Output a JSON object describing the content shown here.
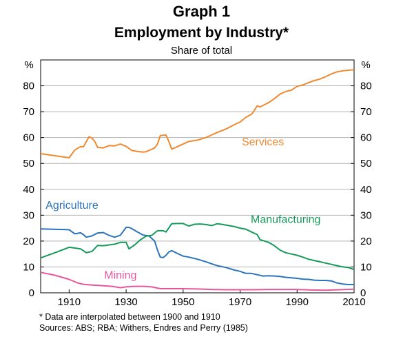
{
  "header": {
    "graph_number": "Graph 1",
    "title": "Employment by Industry*",
    "subtitle": "Share of total"
  },
  "footer": {
    "footnote": "*   Data are interpolated between 1900 and 1910",
    "sources": "Sources: ABS; RBA; Withers, Endres and Perry (1985)"
  },
  "chart_data": {
    "type": "line",
    "title": "Employment by Industry*",
    "subtitle": "Share of total",
    "ylabel_left": "%",
    "ylabel_right": "%",
    "xlim": [
      1900,
      2010
    ],
    "ylim": [
      0,
      90
    ],
    "x_ticks": [
      1910,
      1930,
      1950,
      1970,
      1990,
      2010
    ],
    "y_ticks": [
      0,
      10,
      20,
      30,
      40,
      50,
      60,
      70,
      80
    ],
    "grid": "horizontal",
    "series": [
      {
        "name": "Services",
        "color": "#f0892f",
        "points": [
          [
            1900,
            53.8
          ],
          [
            1910,
            52.2
          ],
          [
            1912,
            55.2
          ],
          [
            1914,
            56.5
          ],
          [
            1915,
            56.4
          ],
          [
            1917,
            60.3
          ],
          [
            1918,
            59.8
          ],
          [
            1919,
            58.5
          ],
          [
            1920,
            56.2
          ],
          [
            1922,
            56.0
          ],
          [
            1924,
            56.9
          ],
          [
            1926,
            56.8
          ],
          [
            1928,
            57.5
          ],
          [
            1930,
            56.6
          ],
          [
            1932,
            55.0
          ],
          [
            1934,
            54.6
          ],
          [
            1936,
            54.4
          ],
          [
            1937,
            54.5
          ],
          [
            1938,
            55.0
          ],
          [
            1940,
            56.0
          ],
          [
            1941,
            57.5
          ],
          [
            1942,
            60.8
          ],
          [
            1944,
            61.0
          ],
          [
            1945,
            58.5
          ],
          [
            1946,
            55.5
          ],
          [
            1948,
            56.5
          ],
          [
            1950,
            57.5
          ],
          [
            1952,
            58.5
          ],
          [
            1955,
            59.0
          ],
          [
            1958,
            60.0
          ],
          [
            1960,
            61.0
          ],
          [
            1962,
            62.0
          ],
          [
            1965,
            63.3
          ],
          [
            1968,
            65.0
          ],
          [
            1970,
            66.0
          ],
          [
            1972,
            67.8
          ],
          [
            1974,
            69.0
          ],
          [
            1975,
            70.5
          ],
          [
            1976,
            72.3
          ],
          [
            1977,
            71.8
          ],
          [
            1978,
            72.4
          ],
          [
            1980,
            73.5
          ],
          [
            1982,
            75.0
          ],
          [
            1984,
            76.8
          ],
          [
            1986,
            77.8
          ],
          [
            1988,
            78.3
          ],
          [
            1990,
            79.8
          ],
          [
            1992,
            80.3
          ],
          [
            1994,
            81.2
          ],
          [
            1996,
            82.0
          ],
          [
            1998,
            82.6
          ],
          [
            2000,
            83.5
          ],
          [
            2002,
            84.6
          ],
          [
            2004,
            85.4
          ],
          [
            2006,
            85.8
          ],
          [
            2008,
            86.0
          ],
          [
            2010,
            86.2
          ]
        ]
      },
      {
        "name": "Agriculture",
        "color": "#2a74bb",
        "points": [
          [
            1900,
            24.7
          ],
          [
            1910,
            24.4
          ],
          [
            1912,
            22.8
          ],
          [
            1914,
            23.2
          ],
          [
            1915,
            22.5
          ],
          [
            1916,
            21.5
          ],
          [
            1918,
            22.0
          ],
          [
            1920,
            23.1
          ],
          [
            1922,
            23.3
          ],
          [
            1924,
            22.2
          ],
          [
            1926,
            21.5
          ],
          [
            1928,
            22.3
          ],
          [
            1930,
            25.3
          ],
          [
            1931,
            25.3
          ],
          [
            1932,
            24.8
          ],
          [
            1934,
            23.5
          ],
          [
            1936,
            22.3
          ],
          [
            1938,
            22.0
          ],
          [
            1940,
            20.0
          ],
          [
            1941,
            16.5
          ],
          [
            1942,
            13.8
          ],
          [
            1943,
            13.6
          ],
          [
            1944,
            14.5
          ],
          [
            1945,
            15.8
          ],
          [
            1946,
            16.3
          ],
          [
            1948,
            15.2
          ],
          [
            1950,
            14.2
          ],
          [
            1952,
            13.8
          ],
          [
            1955,
            13.0
          ],
          [
            1958,
            12.0
          ],
          [
            1960,
            11.2
          ],
          [
            1962,
            10.5
          ],
          [
            1965,
            9.8
          ],
          [
            1968,
            8.8
          ],
          [
            1970,
            8.3
          ],
          [
            1972,
            7.5
          ],
          [
            1974,
            7.5
          ],
          [
            1976,
            7.0
          ],
          [
            1978,
            6.5
          ],
          [
            1980,
            6.6
          ],
          [
            1982,
            6.5
          ],
          [
            1984,
            6.3
          ],
          [
            1986,
            6.0
          ],
          [
            1988,
            5.8
          ],
          [
            1990,
            5.6
          ],
          [
            1992,
            5.3
          ],
          [
            1994,
            5.2
          ],
          [
            1996,
            4.9
          ],
          [
            1998,
            4.8
          ],
          [
            2000,
            4.8
          ],
          [
            2002,
            4.6
          ],
          [
            2004,
            3.8
          ],
          [
            2006,
            3.4
          ],
          [
            2008,
            3.2
          ],
          [
            2010,
            3.2
          ]
        ]
      },
      {
        "name": "Manufacturing",
        "color": "#159a5a",
        "points": [
          [
            1900,
            13.5
          ],
          [
            1905,
            15.5
          ],
          [
            1910,
            17.6
          ],
          [
            1912,
            17.3
          ],
          [
            1914,
            17.0
          ],
          [
            1915,
            16.3
          ],
          [
            1916,
            15.5
          ],
          [
            1918,
            16.0
          ],
          [
            1920,
            18.3
          ],
          [
            1922,
            18.2
          ],
          [
            1924,
            18.5
          ],
          [
            1926,
            18.8
          ],
          [
            1928,
            19.5
          ],
          [
            1930,
            19.5
          ],
          [
            1931,
            17.0
          ],
          [
            1933,
            18.5
          ],
          [
            1935,
            20.5
          ],
          [
            1937,
            21.9
          ],
          [
            1939,
            22.2
          ],
          [
            1941,
            24.0
          ],
          [
            1943,
            24.0
          ],
          [
            1944,
            23.5
          ],
          [
            1946,
            26.7
          ],
          [
            1948,
            26.8
          ],
          [
            1950,
            26.8
          ],
          [
            1952,
            25.8
          ],
          [
            1954,
            26.5
          ],
          [
            1956,
            26.6
          ],
          [
            1958,
            26.4
          ],
          [
            1960,
            26.0
          ],
          [
            1962,
            26.7
          ],
          [
            1964,
            26.4
          ],
          [
            1966,
            26.0
          ],
          [
            1968,
            25.6
          ],
          [
            1970,
            25.0
          ],
          [
            1972,
            24.6
          ],
          [
            1974,
            23.5
          ],
          [
            1976,
            22.5
          ],
          [
            1977,
            20.5
          ],
          [
            1978,
            20.2
          ],
          [
            1980,
            19.5
          ],
          [
            1982,
            18.2
          ],
          [
            1984,
            16.5
          ],
          [
            1986,
            15.5
          ],
          [
            1988,
            15.0
          ],
          [
            1990,
            14.5
          ],
          [
            1992,
            13.8
          ],
          [
            1994,
            13.0
          ],
          [
            1996,
            12.5
          ],
          [
            1998,
            12.0
          ],
          [
            2000,
            11.5
          ],
          [
            2002,
            11.0
          ],
          [
            2004,
            10.5
          ],
          [
            2006,
            10.0
          ],
          [
            2008,
            9.8
          ],
          [
            2010,
            9.0
          ]
        ]
      },
      {
        "name": "Mining",
        "color": "#e8579b",
        "points": [
          [
            1900,
            7.9
          ],
          [
            1905,
            6.8
          ],
          [
            1910,
            5.2
          ],
          [
            1913,
            3.8
          ],
          [
            1915,
            3.3
          ],
          [
            1918,
            3.0
          ],
          [
            1920,
            2.9
          ],
          [
            1925,
            2.5
          ],
          [
            1928,
            2.0
          ],
          [
            1930,
            2.3
          ],
          [
            1933,
            2.5
          ],
          [
            1936,
            2.5
          ],
          [
            1939,
            2.3
          ],
          [
            1942,
            1.6
          ],
          [
            1945,
            1.6
          ],
          [
            1948,
            1.6
          ],
          [
            1950,
            1.6
          ],
          [
            1955,
            1.5
          ],
          [
            1960,
            1.3
          ],
          [
            1965,
            1.2
          ],
          [
            1970,
            1.2
          ],
          [
            1975,
            1.2
          ],
          [
            1980,
            1.3
          ],
          [
            1985,
            1.3
          ],
          [
            1990,
            1.3
          ],
          [
            1995,
            1.1
          ],
          [
            2000,
            1.0
          ],
          [
            2005,
            1.2
          ],
          [
            2010,
            1.4
          ]
        ]
      }
    ],
    "annotations": [
      {
        "text": "Services",
        "x": 1978,
        "y": 57,
        "color": "#f0892f"
      },
      {
        "text": "Agriculture",
        "x": 1911,
        "y": 32.5,
        "color": "#2a74bb"
      },
      {
        "text": "Manufacturing",
        "x": 1986,
        "y": 27,
        "color": "#159a5a"
      },
      {
        "text": "Mining",
        "x": 1928,
        "y": 5.5,
        "color": "#e8579b"
      }
    ]
  }
}
